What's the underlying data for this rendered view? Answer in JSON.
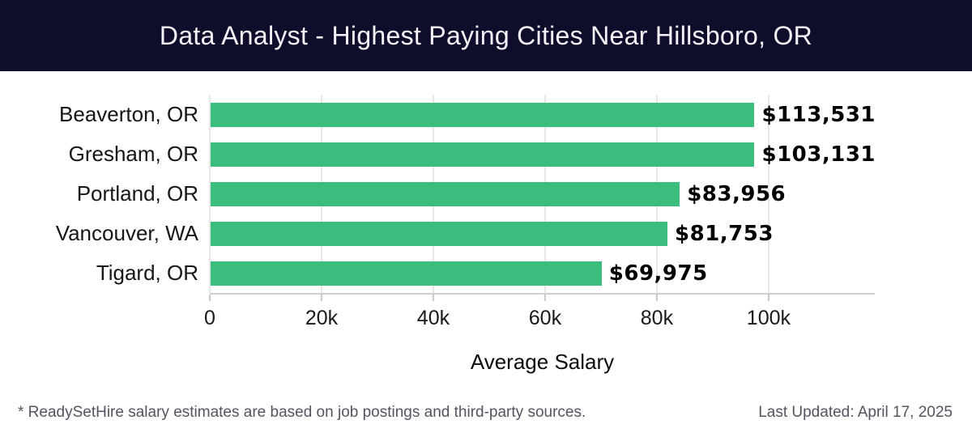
{
  "header": {
    "title": "Data Analyst - Highest Paying Cities Near Hillsboro, OR"
  },
  "chart_data": {
    "type": "bar",
    "orientation": "horizontal",
    "title": "Data Analyst - Highest Paying Cities Near Hillsboro, OR",
    "categories": [
      "Beaverton, OR",
      "Gresham, OR",
      "Portland, OR",
      "Vancouver, WA",
      "Tigard, OR"
    ],
    "values": [
      113531,
      103131,
      83956,
      81753,
      69975
    ],
    "value_labels": [
      "$113,531",
      "$103,131",
      "$83,956",
      "$81,753",
      "$69,975"
    ],
    "xlabel": "Average Salary",
    "ylabel": "",
    "xlim": [
      0,
      119000
    ],
    "xticks": [
      {
        "label": "0",
        "value": 0
      },
      {
        "label": "20k",
        "value": 20000
      },
      {
        "label": "40k",
        "value": 40000
      },
      {
        "label": "60k",
        "value": 60000
      },
      {
        "label": "80k",
        "value": 80000
      },
      {
        "label": "100k",
        "value": 100000
      }
    ],
    "grid": "vertical",
    "legend": "none"
  },
  "colors": {
    "bar": "#3bbd7e",
    "header_bg": "#0e0e2c",
    "gridline": "#e7e7e7",
    "axis_line": "#cfcfcf"
  },
  "footer": {
    "disclaimer": "* ReadySetHire salary estimates are based on job postings and third-party sources.",
    "last_updated": "Last Updated: April 17, 2025"
  }
}
